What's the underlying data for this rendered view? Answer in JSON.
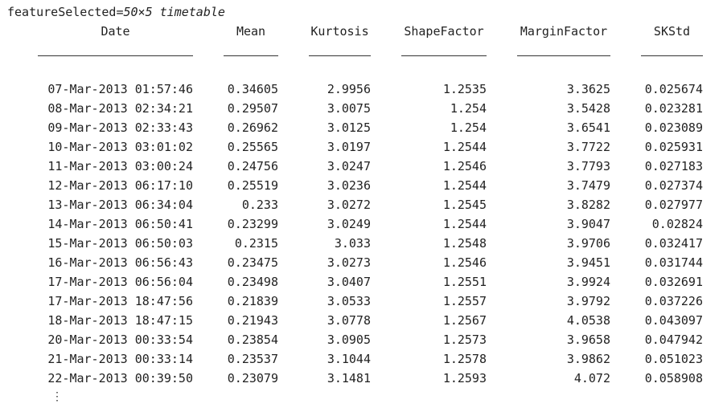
{
  "title": {
    "variable": "featureSelected",
    "equals": "=",
    "size_type": "50×5 timetable"
  },
  "table": {
    "headers": [
      "Date",
      "Mean",
      "Kurtosis",
      "ShapeFactor",
      "MarginFactor",
      "SKStd"
    ],
    "separators": [
      "___________________",
      "_______",
      "________",
      "___________",
      "____________",
      "________"
    ],
    "rows": [
      [
        "07-Mar-2013 01:57:46",
        "0.34605",
        "2.9956",
        "1.2535",
        "3.3625",
        "0.025674"
      ],
      [
        "08-Mar-2013 02:34:21",
        "0.29507",
        "3.0075",
        "1.254",
        "3.5428",
        "0.023281"
      ],
      [
        "09-Mar-2013 02:33:43",
        "0.26962",
        "3.0125",
        "1.254",
        "3.6541",
        "0.023089"
      ],
      [
        "10-Mar-2013 03:01:02",
        "0.25565",
        "3.0197",
        "1.2544",
        "3.7722",
        "0.025931"
      ],
      [
        "11-Mar-2013 03:00:24",
        "0.24756",
        "3.0247",
        "1.2546",
        "3.7793",
        "0.027183"
      ],
      [
        "12-Mar-2013 06:17:10",
        "0.25519",
        "3.0236",
        "1.2544",
        "3.7479",
        "0.027374"
      ],
      [
        "13-Mar-2013 06:34:04",
        "0.233",
        "3.0272",
        "1.2545",
        "3.8282",
        "0.027977"
      ],
      [
        "14-Mar-2013 06:50:41",
        "0.23299",
        "3.0249",
        "1.2544",
        "3.9047",
        "0.02824"
      ],
      [
        "15-Mar-2013 06:50:03",
        "0.2315",
        "3.033",
        "1.2548",
        "3.9706",
        "0.032417"
      ],
      [
        "16-Mar-2013 06:56:43",
        "0.23475",
        "3.0273",
        "1.2546",
        "3.9451",
        "0.031744"
      ],
      [
        "17-Mar-2013 06:56:04",
        "0.23498",
        "3.0407",
        "1.2551",
        "3.9924",
        "0.032691"
      ],
      [
        "17-Mar-2013 18:47:56",
        "0.21839",
        "3.0533",
        "1.2557",
        "3.9792",
        "0.037226"
      ],
      [
        "18-Mar-2013 18:47:15",
        "0.21943",
        "3.0778",
        "1.2567",
        "4.0538",
        "0.043097"
      ],
      [
        "20-Mar-2013 00:33:54",
        "0.23854",
        "3.0905",
        "1.2573",
        "3.9658",
        "0.047942"
      ],
      [
        "21-Mar-2013 00:33:14",
        "0.23537",
        "3.1044",
        "1.2578",
        "3.9862",
        "0.051023"
      ],
      [
        "22-Mar-2013 00:39:50",
        "0.23079",
        "3.1481",
        "1.2593",
        "4.072",
        "0.058908"
      ]
    ],
    "truncation": "⋮"
  }
}
